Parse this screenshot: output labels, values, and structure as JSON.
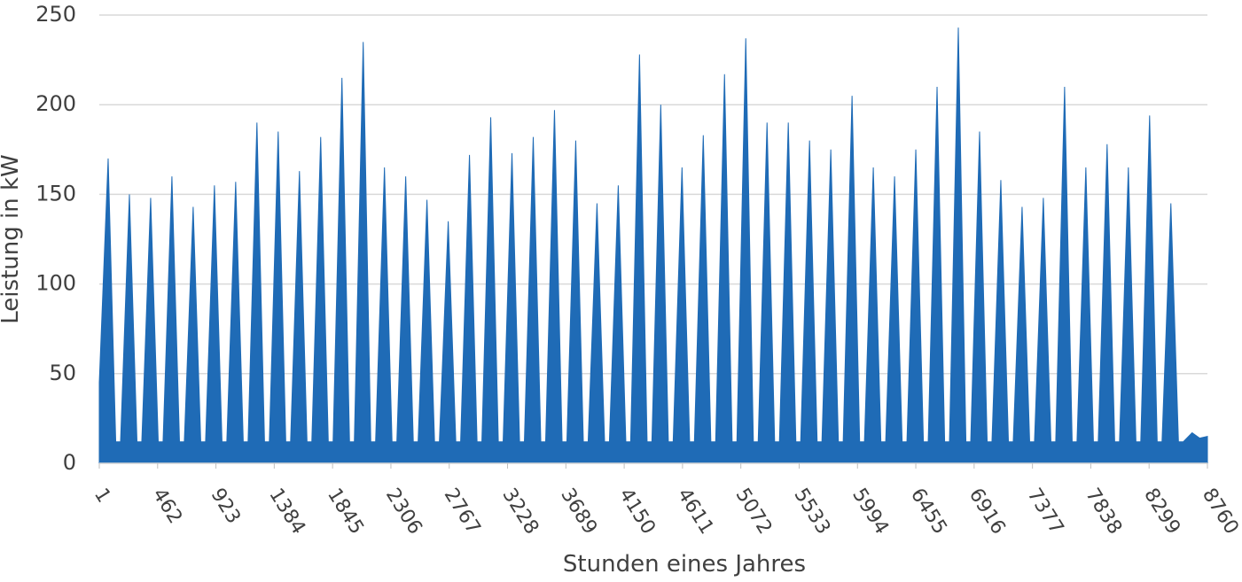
{
  "chart_data": {
    "type": "area",
    "color": "#1f6bb6",
    "grid": true,
    "x_label": "Stunden eines Jahres",
    "y_label": "Leistung in kW",
    "xlim": [
      1,
      8760
    ],
    "ylim": [
      0,
      250
    ],
    "xticks": [
      1,
      462,
      923,
      1384,
      1845,
      2306,
      2767,
      3228,
      3689,
      4150,
      4611,
      5072,
      5533,
      5994,
      6455,
      6916,
      7377,
      7838,
      8299,
      8760
    ],
    "yticks": [
      0,
      50,
      100,
      150,
      200,
      250
    ],
    "x": [
      1,
      71,
      131,
      169,
      239,
      299,
      337,
      407,
      467,
      505,
      575,
      635,
      673,
      743,
      803,
      841,
      911,
      971,
      1009,
      1079,
      1139,
      1177,
      1247,
      1307,
      1345,
      1415,
      1475,
      1513,
      1583,
      1643,
      1681,
      1751,
      1811,
      1849,
      1919,
      1979,
      2017,
      2087,
      2147,
      2185,
      2255,
      2315,
      2353,
      2423,
      2483,
      2521,
      2591,
      2651,
      2689,
      2759,
      2819,
      2857,
      2927,
      2987,
      3025,
      3095,
      3155,
      3193,
      3263,
      3323,
      3361,
      3431,
      3491,
      3529,
      3599,
      3659,
      3697,
      3767,
      3827,
      3865,
      3935,
      3995,
      4033,
      4103,
      4163,
      4201,
      4271,
      4331,
      4369,
      4439,
      4499,
      4537,
      4607,
      4667,
      4705,
      4775,
      4835,
      4873,
      4943,
      5003,
      5041,
      5111,
      5171,
      5209,
      5279,
      5339,
      5377,
      5447,
      5507,
      5545,
      5615,
      5675,
      5713,
      5783,
      5843,
      5881,
      5951,
      6011,
      6049,
      6119,
      6179,
      6217,
      6287,
      6347,
      6385,
      6455,
      6515,
      6553,
      6623,
      6683,
      6721,
      6791,
      6851,
      6889,
      6959,
      7019,
      7057,
      7127,
      7187,
      7225,
      7295,
      7355,
      7393,
      7463,
      7523,
      7561,
      7631,
      7691,
      7729,
      7799,
      7859,
      7897,
      7967,
      8027,
      8065,
      8135,
      8195,
      8233,
      8303,
      8363,
      8401,
      8471,
      8531,
      8569,
      8639,
      8699,
      8760
    ],
    "values": [
      45,
      170,
      12,
      12,
      150,
      12,
      12,
      148,
      12,
      12,
      160,
      12,
      12,
      143,
      12,
      12,
      155,
      12,
      12,
      157,
      12,
      12,
      190,
      12,
      12,
      185,
      12,
      12,
      163,
      12,
      12,
      182,
      12,
      12,
      215,
      12,
      12,
      235,
      12,
      12,
      165,
      12,
      12,
      160,
      12,
      12,
      147,
      12,
      12,
      135,
      12,
      12,
      172,
      12,
      12,
      193,
      12,
      12,
      173,
      12,
      12,
      182,
      12,
      12,
      197,
      12,
      12,
      180,
      12,
      12,
      145,
      12,
      12,
      155,
      12,
      12,
      228,
      12,
      12,
      200,
      12,
      12,
      165,
      12,
      12,
      183,
      12,
      12,
      217,
      12,
      12,
      237,
      12,
      12,
      190,
      12,
      12,
      190,
      12,
      12,
      180,
      12,
      12,
      175,
      12,
      12,
      205,
      12,
      12,
      165,
      12,
      12,
      160,
      12,
      12,
      175,
      12,
      12,
      210,
      12,
      12,
      243,
      12,
      12,
      185,
      12,
      12,
      158,
      12,
      12,
      143,
      12,
      12,
      148,
      12,
      12,
      210,
      12,
      12,
      165,
      12,
      12,
      178,
      12,
      12,
      165,
      12,
      12,
      194,
      12,
      12,
      145,
      12,
      12,
      17,
      14,
      15
    ]
  }
}
